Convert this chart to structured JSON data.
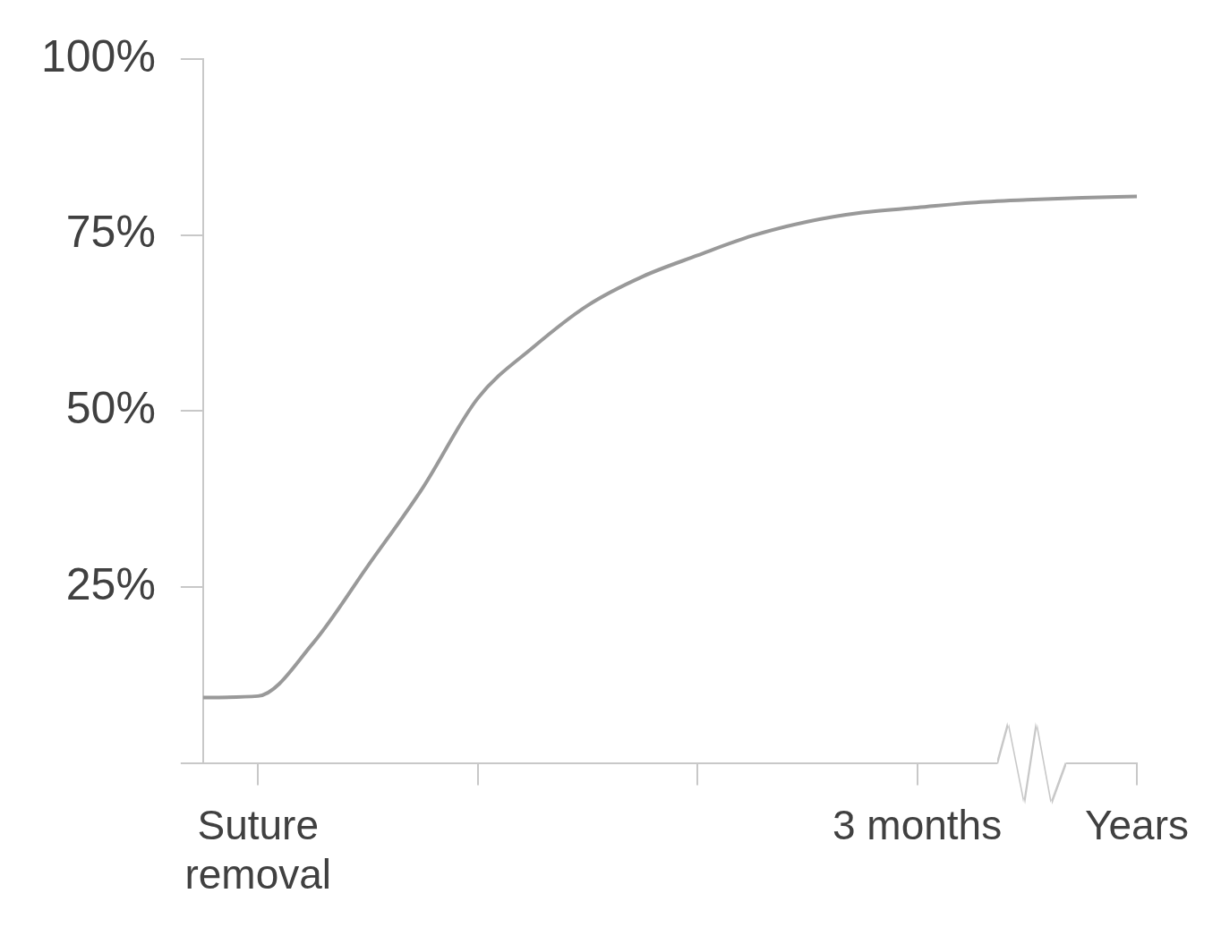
{
  "chart_data": {
    "type": "line",
    "color": "#999999",
    "legend": false,
    "grid": false,
    "marker": "none",
    "line_style": "solid",
    "categories": [
      null,
      "Suture removal",
      null,
      null,
      null,
      null,
      null,
      null,
      null,
      null,
      null,
      null,
      null,
      "3 months",
      null,
      null,
      null,
      "Years"
    ],
    "values": [
      9.3,
      9.5,
      17.0,
      28.0,
      39.1,
      51.8,
      59.0,
      65.0,
      69.1,
      72.1,
      74.9,
      76.9,
      78.2,
      78.9,
      79.6,
      80.0,
      80.3,
      80.5
    ],
    "ylim": [
      0,
      100
    ],
    "yticks": [
      {
        "value": 0,
        "label": null
      },
      {
        "value": 25,
        "label": "25%"
      },
      {
        "value": 50,
        "label": "50%"
      },
      {
        "value": 75,
        "label": "75%"
      },
      {
        "value": 100,
        "label": "100%"
      }
    ]
  }
}
